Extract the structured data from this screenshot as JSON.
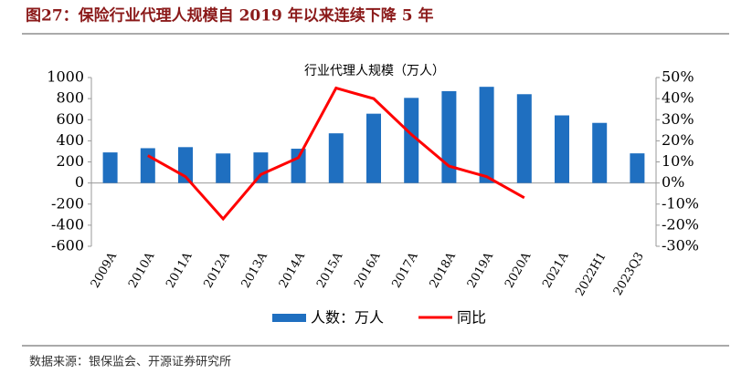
{
  "title": "图27：保险行业代理人规模自 2019 年以来连续下降 5 年",
  "source": "数据来源：银保监会、开源证券研究所",
  "chart_data": {
    "type": "bar-line",
    "title": "行业代理人规模（万人）",
    "categories": [
      "2009A",
      "2010A",
      "2011A",
      "2012A",
      "2013A",
      "2014A",
      "2015A",
      "2016A",
      "2017A",
      "2018A",
      "2019A",
      "2020A",
      "2021A",
      "2022H1",
      "2023Q3"
    ],
    "series": [
      {
        "name": "人数：万人",
        "type": "bar",
        "color": "#1f6fc0",
        "axis": "y",
        "values": [
          290,
          330,
          340,
          280,
          290,
          325,
          471,
          657,
          807,
          871,
          912,
          842,
          641,
          570,
          281
        ]
      },
      {
        "name": "同比",
        "type": "line",
        "color": "#ff0000",
        "axis": "y2",
        "values": [
          null,
          13,
          3,
          -17,
          4,
          12,
          45,
          40,
          23,
          8,
          3,
          -7,
          null,
          null,
          null
        ]
      }
    ],
    "ylim": [
      -600,
      1000
    ],
    "yticks": [
      -600,
      -400,
      -200,
      0,
      200,
      400,
      600,
      800,
      1000
    ],
    "y2lim": [
      -30,
      50
    ],
    "y2ticks": [
      {
        "value": -30,
        "label": "-30%"
      },
      {
        "value": -20,
        "label": "-20%"
      },
      {
        "value": -10,
        "label": "-10%"
      },
      {
        "value": 0,
        "label": "0%"
      },
      {
        "value": 10,
        "label": "10%"
      },
      {
        "value": 20,
        "label": "20%"
      },
      {
        "value": 30,
        "label": "30%"
      },
      {
        "value": 40,
        "label": "40%"
      },
      {
        "value": 50,
        "label": "50%"
      }
    ],
    "legend": "bottom"
  }
}
